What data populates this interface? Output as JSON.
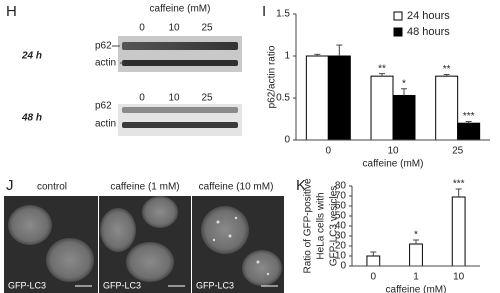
{
  "blot": {
    "panel_label": "H",
    "treatment": "caffeine (mM)",
    "rows": [
      {
        "time": "24 h",
        "doses": [
          "0",
          "10",
          "25"
        ],
        "bands": [
          "p62",
          "actin"
        ]
      },
      {
        "time": "48 h",
        "doses": [
          "0",
          "10",
          "25"
        ],
        "bands": [
          "p62",
          "actin"
        ]
      }
    ]
  },
  "micrograph": {
    "panel_label": "J",
    "conditions": [
      "control",
      "caffeine (1 mM)",
      "caffeine (10 mM)"
    ],
    "stain": [
      "GFP-LC3",
      "GFP-LC3",
      "GFP-LC3"
    ]
  },
  "chart_data": [
    {
      "type": "bar",
      "panel_label": "I",
      "ylabel": [
        "p62/actin ratio"
      ],
      "xlabel": "caffeine (mM)",
      "categories": [
        "0",
        "10",
        "25"
      ],
      "series": [
        {
          "name": "24 hours",
          "color": "#ffffff",
          "values": [
            1.0,
            0.76,
            0.76
          ],
          "errors": [
            0.02,
            0.03,
            0.02
          ],
          "annotations": [
            null,
            "**",
            "**"
          ]
        },
        {
          "name": "48 hours",
          "color": "#000000",
          "values": [
            1.0,
            0.53,
            0.2
          ],
          "errors": [
            0.13,
            0.08,
            0.02
          ],
          "annotations": [
            null,
            "*",
            "***"
          ]
        }
      ],
      "ylim": [
        0,
        1.5
      ],
      "yticks": [
        0,
        0.5,
        1,
        1.5
      ],
      "legend": "top-right"
    },
    {
      "type": "bar",
      "panel_label": "K",
      "ylabel": [
        "Ratio of GFP-positive",
        "HeLa cells with",
        "GFP-LC3 vesicles"
      ],
      "xlabel": "caffeine (mM)",
      "categories": [
        "0",
        "1",
        "10"
      ],
      "series": [
        {
          "color": "#ffffff",
          "values": [
            10,
            22,
            69
          ],
          "errors": [
            4,
            4,
            8
          ],
          "annotations": [
            null,
            "*",
            "***"
          ]
        }
      ],
      "ylim": [
        0,
        80
      ],
      "yticks": [
        0,
        10,
        20,
        30,
        40,
        50,
        60,
        70,
        80
      ]
    }
  ]
}
